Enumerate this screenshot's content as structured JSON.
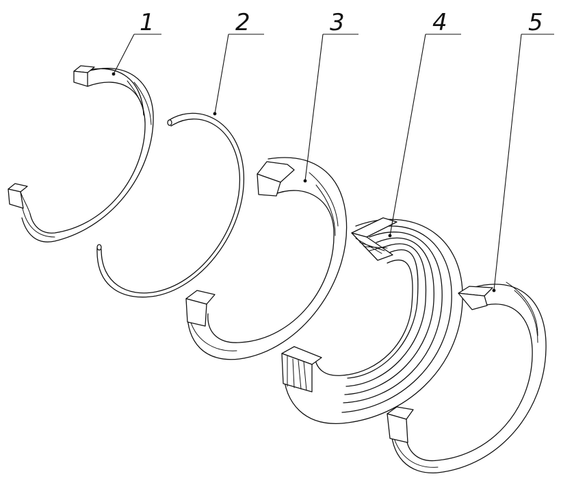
{
  "labels": {
    "part1": "1",
    "part2": "2",
    "part3": "3",
    "part4": "4",
    "part5": "5"
  },
  "colors": {
    "line": "#111111",
    "background": "#ffffff"
  }
}
